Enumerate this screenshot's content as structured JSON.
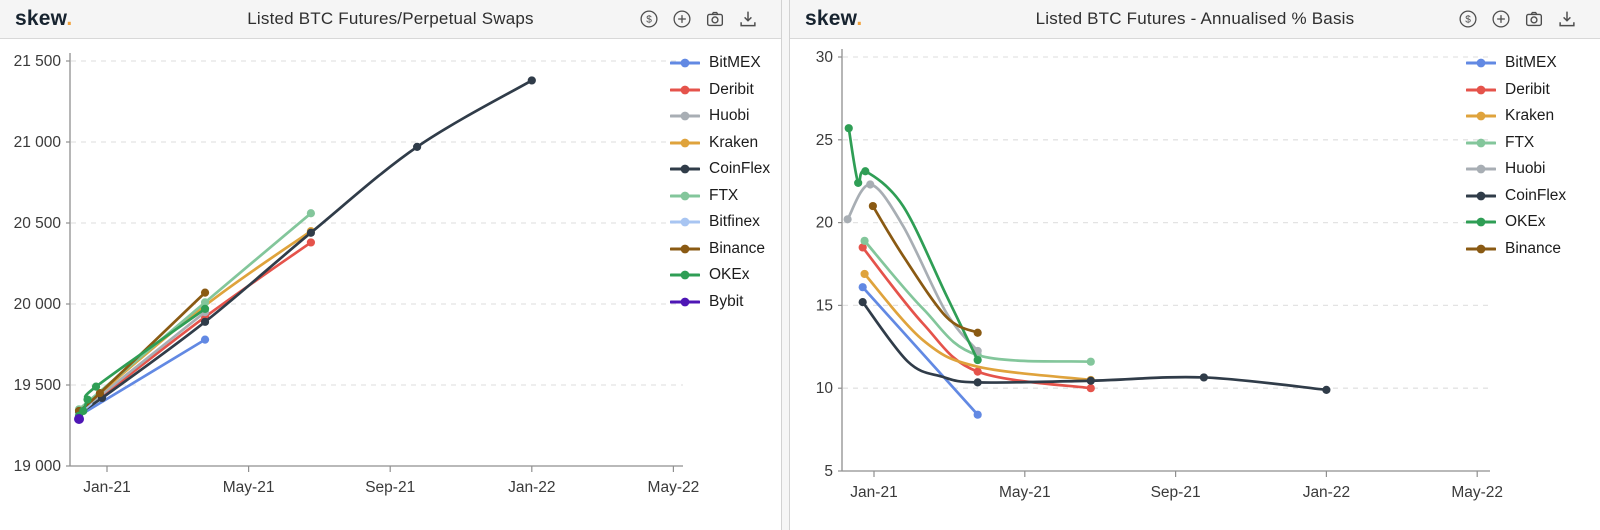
{
  "header": {
    "logo_text": "skew",
    "logo_dot": ".",
    "logo_color": "#17232f",
    "accent_color": "#f0a23c",
    "icons": [
      "dollar-circle-icon",
      "plus-circle-icon",
      "camera-icon",
      "download-icon"
    ]
  },
  "chart_data": [
    {
      "type": "line",
      "title": "Listed BTC Futures/Perpetual Swaps",
      "x_unit": "months relative to Jan-2021 tick",
      "x_tick_labels": [
        "Jan-21",
        "May-21",
        "Sep-21",
        "Jan-22",
        "May-22"
      ],
      "x_tick_months": [
        0,
        4,
        8,
        12,
        16
      ],
      "y_ticks": [
        {
          "label": "21 500",
          "value": 21500
        },
        {
          "label": "21 000",
          "value": 21000
        },
        {
          "label": "20 500",
          "value": 20500
        },
        {
          "label": "20 000",
          "value": 20000
        },
        {
          "label": "19 500",
          "value": 19500
        },
        {
          "label": "19 000",
          "value": 19000
        }
      ],
      "ylim": [
        19000,
        21500
      ],
      "grid": "dashed-horizontal",
      "legend_position": "right",
      "point_format": "[month, value, has_dot]",
      "series": [
        {
          "name": "BitMEX",
          "color": "#6289E3",
          "points": [
            [
              -0.79,
              19310,
              1
            ],
            [
              2.77,
              19780,
              1
            ]
          ]
        },
        {
          "name": "Deribit",
          "color": "#E5534B",
          "points": [
            [
              -0.79,
              19320,
              1
            ],
            [
              2.77,
              19920,
              1
            ],
            [
              5.76,
              20380,
              1
            ]
          ]
        },
        {
          "name": "Huobi",
          "color": "#A8AEB4",
          "points": [
            [
              -0.79,
              19330,
              1
            ],
            [
              2.77,
              19950,
              1
            ]
          ]
        },
        {
          "name": "Kraken",
          "color": "#DFA33C",
          "points": [
            [
              -0.79,
              19340,
              1
            ],
            [
              2.77,
              19990,
              0
            ],
            [
              5.76,
              20450,
              1
            ]
          ]
        },
        {
          "name": "CoinFlex",
          "color": "#303C49",
          "points": [
            [
              -0.79,
              19330,
              1
            ],
            [
              -0.14,
              19420,
              1
            ],
            [
              2.77,
              19890,
              1
            ],
            [
              5.76,
              20440,
              1
            ],
            [
              8.76,
              20970,
              1
            ],
            [
              12,
              21380,
              1
            ]
          ]
        },
        {
          "name": "FTX",
          "color": "#83C69B",
          "points": [
            [
              -0.79,
              19350,
              1
            ],
            [
              2.77,
              20010,
              1
            ],
            [
              5.76,
              20560,
              1
            ]
          ]
        },
        {
          "name": "Bitfinex",
          "color": "#A8C5F2",
          "points": [
            [
              -0.79,
              19320,
              1
            ],
            [
              -0.45,
              19385,
              0
            ]
          ]
        },
        {
          "name": "Binance",
          "color": "#8A5A13",
          "points": [
            [
              -0.79,
              19340,
              1
            ],
            [
              -0.2,
              19450,
              1
            ],
            [
              2.77,
              20070,
              1
            ]
          ]
        },
        {
          "name": "OKEx",
          "color": "#2F9E55",
          "points": [
            [
              -0.79,
              19310,
              1
            ],
            [
              -0.67,
              19340,
              1
            ],
            [
              -0.55,
              19410,
              1
            ],
            [
              -0.31,
              19490,
              1
            ],
            [
              2.77,
              19970,
              1
            ]
          ]
        },
        {
          "name": "Bybit",
          "color": "#4E16B5",
          "points": [
            [
              -0.79,
              19290,
              1
            ]
          ]
        }
      ]
    },
    {
      "type": "line",
      "title": "Listed BTC Futures - Annualised % Basis",
      "x_unit": "months relative to Jan-2021 tick",
      "x_tick_labels": [
        "Jan-21",
        "May-21",
        "Sep-21",
        "Jan-22",
        "May-22"
      ],
      "x_tick_months": [
        0,
        4,
        8,
        12,
        16
      ],
      "y_ticks": [
        {
          "label": "30",
          "value": 30
        },
        {
          "label": "25",
          "value": 25
        },
        {
          "label": "20",
          "value": 20
        },
        {
          "label": "15",
          "value": 15
        },
        {
          "label": "10",
          "value": 10
        },
        {
          "label": "5",
          "value": 5
        }
      ],
      "ylim": [
        5,
        30
      ],
      "grid": "dashed-horizontal",
      "legend_position": "right",
      "point_format": "[month, value, has_dot]",
      "series": [
        {
          "name": "BitMEX",
          "color": "#6289E3",
          "points": [
            [
              -0.3,
              16.1,
              1
            ],
            [
              2.75,
              8.4,
              1
            ]
          ]
        },
        {
          "name": "Deribit",
          "color": "#E5534B",
          "points": [
            [
              -0.3,
              18.5,
              1
            ],
            [
              1.3,
              13.9,
              0
            ],
            [
              2.75,
              11.0,
              1
            ],
            [
              5.75,
              10.0,
              1
            ]
          ]
        },
        {
          "name": "Kraken",
          "color": "#DFA33C",
          "points": [
            [
              -0.25,
              16.9,
              1
            ],
            [
              1.3,
              12.9,
              0
            ],
            [
              2.75,
              11.3,
              0
            ],
            [
              5.75,
              10.5,
              1
            ]
          ]
        },
        {
          "name": "FTX",
          "color": "#83C69B",
          "points": [
            [
              -0.25,
              18.9,
              1
            ],
            [
              1.3,
              14.8,
              0
            ],
            [
              2.75,
              12.0,
              1
            ],
            [
              5.75,
              11.6,
              1
            ]
          ]
        },
        {
          "name": "Huobi",
          "color": "#A8AEB4",
          "points": [
            [
              -0.7,
              20.2,
              1
            ],
            [
              -0.1,
              22.3,
              1
            ],
            [
              0.77,
              19.8,
              0
            ],
            [
              1.92,
              14.55,
              0
            ],
            [
              2.75,
              12.25,
              1
            ]
          ]
        },
        {
          "name": "CoinFlex",
          "color": "#303C49",
          "points": [
            [
              -0.3,
              15.2,
              1
            ],
            [
              0.9,
              11.6,
              0
            ],
            [
              1.8,
              10.7,
              0
            ],
            [
              2.75,
              10.35,
              1
            ],
            [
              5.75,
              10.45,
              1
            ],
            [
              8.75,
              10.65,
              1
            ],
            [
              12,
              9.9,
              1
            ]
          ]
        },
        {
          "name": "OKEx",
          "color": "#2F9E55",
          "points": [
            [
              -0.67,
              25.7,
              1
            ],
            [
              -0.42,
              22.4,
              1
            ],
            [
              -0.23,
              23.1,
              1
            ],
            [
              0.77,
              21.0,
              0
            ],
            [
              1.92,
              15.6,
              0
            ],
            [
              2.75,
              11.7,
              1
            ]
          ]
        },
        {
          "name": "Binance",
          "color": "#8A5A13",
          "points": [
            [
              -0.03,
              21.0,
              1
            ],
            [
              0.77,
              18.0,
              0
            ],
            [
              1.92,
              14.3,
              0
            ],
            [
              2.75,
              13.35,
              1
            ]
          ]
        }
      ]
    }
  ]
}
